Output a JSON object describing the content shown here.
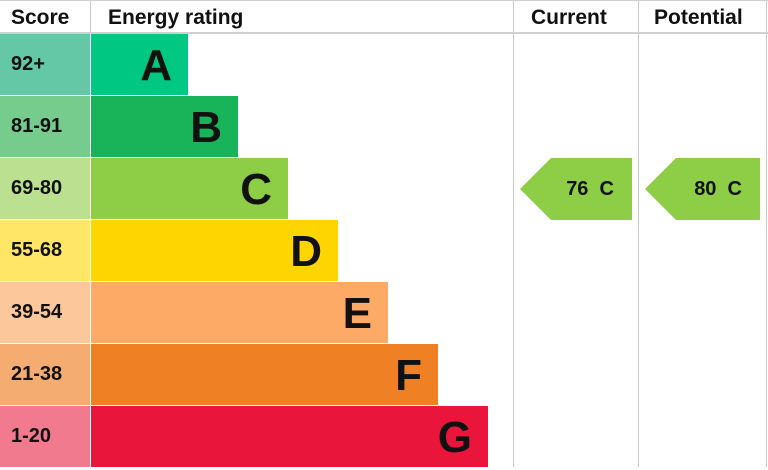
{
  "chart_data": {
    "type": "bar",
    "headers": {
      "score": "Score",
      "rating": "Energy rating",
      "current": "Current",
      "potential": "Potential"
    },
    "bands": [
      {
        "letter": "A",
        "range": "92+",
        "color": "#00c781",
        "light": "#64c7a6"
      },
      {
        "letter": "B",
        "range": "81-91",
        "color": "#19b459",
        "light": "#76cc8d"
      },
      {
        "letter": "C",
        "range": "69-80",
        "color": "#8dce46",
        "light": "#bbe08f"
      },
      {
        "letter": "D",
        "range": "55-68",
        "color": "#ffd500",
        "light": "#ffe666"
      },
      {
        "letter": "E",
        "range": "39-54",
        "color": "#fcaa65",
        "light": "#fdc79c"
      },
      {
        "letter": "F",
        "range": "21-38",
        "color": "#ef8023",
        "light": "#f5ac70"
      },
      {
        "letter": "G",
        "range": "1-20",
        "color": "#e9153b",
        "light": "#f27a8f"
      }
    ],
    "current": {
      "value": 76,
      "band": "C",
      "label": "76  C"
    },
    "potential": {
      "value": 80,
      "band": "C",
      "label": "80  C"
    }
  }
}
